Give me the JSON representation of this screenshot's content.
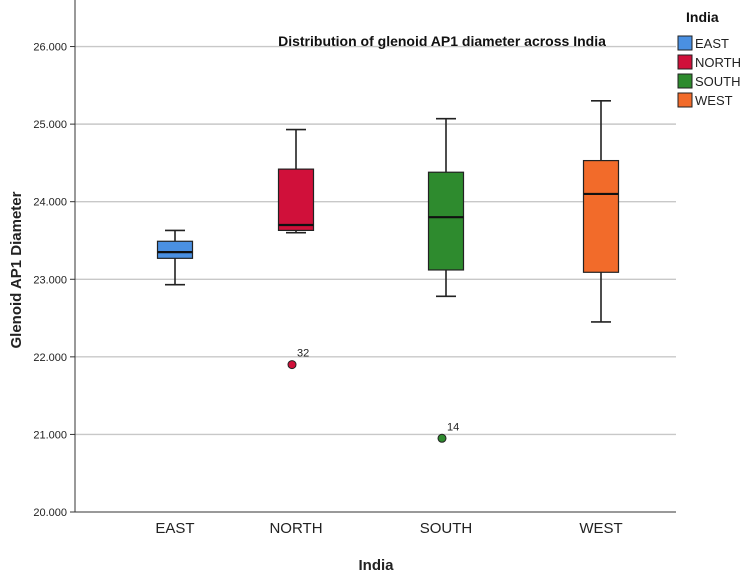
{
  "chart_data": {
    "type": "boxplot",
    "title": "Distribution of glenoid AP1 diameter across India",
    "xlabel": "India",
    "ylabel": "Glenoid AP1 Diameter",
    "ylim": [
      20.0,
      26.6
    ],
    "yticks": [
      "20.000",
      "21.000",
      "22.000",
      "23.000",
      "24.000",
      "25.000",
      "26.000"
    ],
    "ytick_values": [
      20,
      21,
      22,
      23,
      24,
      25,
      26
    ],
    "grid": "horizontal",
    "legend": {
      "title": "India",
      "placement": "top-right",
      "entries": [
        "EAST",
        "NORTH",
        "SOUTH",
        "WEST"
      ]
    },
    "categories": [
      "EAST",
      "NORTH",
      "SOUTH",
      "WEST"
    ],
    "series": [
      {
        "category": "EAST",
        "color": "#4a90e2",
        "whisker_low": 22.93,
        "q1": 23.27,
        "median": 23.35,
        "q3": 23.49,
        "whisker_high": 23.63,
        "outliers": []
      },
      {
        "category": "NORTH",
        "color": "#d0103a",
        "whisker_low": 23.6,
        "q1": 23.63,
        "median": 23.7,
        "q3": 24.42,
        "whisker_high": 24.93,
        "outliers": [
          {
            "value": 21.9,
            "label": "32"
          }
        ]
      },
      {
        "category": "SOUTH",
        "color": "#2e8b2e",
        "whisker_low": 22.78,
        "q1": 23.12,
        "median": 23.8,
        "q3": 24.38,
        "whisker_high": 25.07,
        "outliers": [
          {
            "value": 20.95,
            "label": "14"
          }
        ]
      },
      {
        "category": "WEST",
        "color": "#f26b2a",
        "whisker_low": 22.45,
        "q1": 23.09,
        "median": 24.1,
        "q3": 24.53,
        "whisker_high": 25.3,
        "outliers": []
      }
    ]
  }
}
